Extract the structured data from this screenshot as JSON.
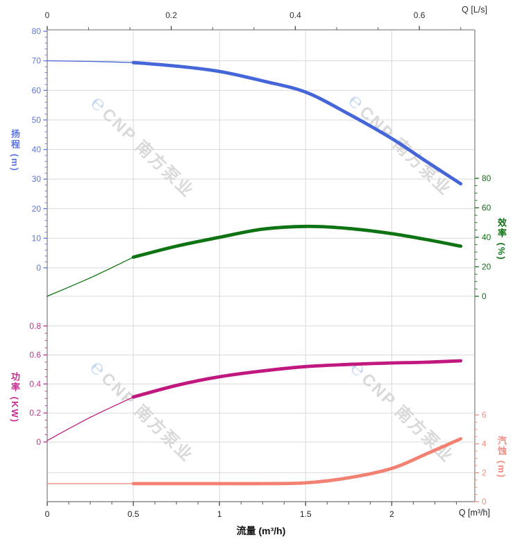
{
  "watermark": {
    "logo_glyph": "℮",
    "text": "CNP 南方泵业",
    "logo_color": "#c5d8f0",
    "text_color": "#d9d9d9"
  },
  "axes": {
    "top": {
      "title": "Q [L/s]",
      "tick_labels": [
        "0",
        "0.2",
        "0.4",
        "0.6"
      ],
      "tick_values": [
        0,
        0.2,
        0.4,
        0.6
      ],
      "color": "#333333"
    },
    "bottom": {
      "title": "流量 (m³/h)",
      "unit_label": "Q [m³/h]",
      "tick_labels": [
        "0",
        "0.5",
        "1",
        "1.5",
        "2"
      ],
      "tick_values": [
        0,
        0.5,
        1,
        1.5,
        2
      ],
      "color": "#222222"
    },
    "head": {
      "title": "扬程 (m)",
      "tick_labels": [
        "80",
        "70",
        "60",
        "50",
        "40",
        "30",
        "20",
        "10",
        "0"
      ],
      "tick_values": [
        80,
        70,
        60,
        50,
        40,
        30,
        20,
        10,
        0
      ],
      "range": [
        0,
        80
      ],
      "color": "#5b76e0"
    },
    "efficiency": {
      "title": "效率 (%)",
      "tick_labels": [
        "80",
        "60",
        "40",
        "20",
        "0"
      ],
      "tick_values": [
        80,
        60,
        40,
        20,
        0
      ],
      "range": [
        0,
        80
      ],
      "color": "#0d7113"
    },
    "power": {
      "title": "功率 (KW)",
      "tick_labels": [
        "0.8",
        "0.6",
        "0.4",
        "0.2",
        "0"
      ],
      "tick_values": [
        0.8,
        0.6,
        0.4,
        0.2,
        0
      ],
      "range": [
        0,
        0.8
      ],
      "color": "#c72d92"
    },
    "npsh": {
      "title": "汽蚀 (m)",
      "tick_labels": [
        "6",
        "4",
        "2",
        "0"
      ],
      "tick_values": [
        6,
        4,
        2,
        0
      ],
      "range": [
        0,
        6
      ],
      "color": "#f4897c"
    }
  },
  "chart_data": {
    "type": "line",
    "title": "",
    "x_units": {
      "bottom": "m³/h",
      "top": "L/s"
    },
    "x_range_m3h": [
      0,
      2.48
    ],
    "thick_from_q": 0.5,
    "grid": true,
    "series": [
      {
        "name": "扬程",
        "unit": "m",
        "axis": "head",
        "color": "#4466d8",
        "points": [
          [
            0,
            70
          ],
          [
            0.25,
            69.8
          ],
          [
            0.5,
            69.4
          ],
          [
            0.75,
            68.2
          ],
          [
            1,
            66.4
          ],
          [
            1.25,
            63.2
          ],
          [
            1.5,
            59.4
          ],
          [
            1.75,
            52
          ],
          [
            2,
            43.7
          ],
          [
            2.2,
            36
          ],
          [
            2.4,
            28.4
          ]
        ]
      },
      {
        "name": "效率",
        "unit": "%",
        "axis": "efficiency",
        "color": "#0e7312",
        "points": [
          [
            0,
            0
          ],
          [
            0.25,
            12.5
          ],
          [
            0.5,
            26.5
          ],
          [
            0.75,
            34
          ],
          [
            1,
            40
          ],
          [
            1.25,
            45.5
          ],
          [
            1.5,
            47.4
          ],
          [
            1.75,
            46
          ],
          [
            2,
            42.5
          ],
          [
            2.2,
            38.5
          ],
          [
            2.4,
            34
          ]
        ]
      },
      {
        "name": "功率",
        "unit": "KW",
        "axis": "power",
        "color": "#c0187e",
        "points": [
          [
            0,
            0.01
          ],
          [
            0.25,
            0.17
          ],
          [
            0.5,
            0.31
          ],
          [
            0.75,
            0.39
          ],
          [
            1,
            0.45
          ],
          [
            1.25,
            0.49
          ],
          [
            1.5,
            0.52
          ],
          [
            1.75,
            0.535
          ],
          [
            2,
            0.545
          ],
          [
            2.2,
            0.55
          ],
          [
            2.4,
            0.56
          ]
        ]
      },
      {
        "name": "汽蚀",
        "unit": "m",
        "axis": "npsh",
        "color": "#f28172",
        "points": [
          [
            0,
            1.25
          ],
          [
            0.5,
            1.25
          ],
          [
            1,
            1.25
          ],
          [
            1.25,
            1.25
          ],
          [
            1.5,
            1.3
          ],
          [
            1.75,
            1.65
          ],
          [
            2,
            2.3
          ],
          [
            2.2,
            3.3
          ],
          [
            2.4,
            4.35
          ]
        ]
      }
    ]
  }
}
